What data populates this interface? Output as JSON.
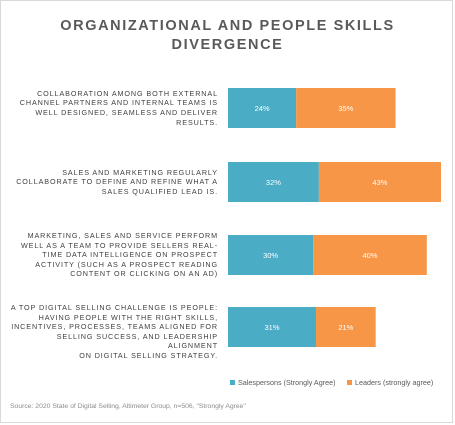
{
  "chart_data": {
    "type": "bar",
    "orientation": "horizontal",
    "stacked": true,
    "title_lines": [
      "ORGANIZATIONAL AND PEOPLE SKILLS",
      "DIVERGENCE"
    ],
    "categories": [
      "Collaboration among both external channel partners and internal teams is well designed, seamless and deliver results.",
      "Sales and marketing regularly collaborate to define and refine what a sales qualified lead is.",
      "Marketing, sales and service perform well as a team to provide sellers real-time data intelligence on prospect activity (such as a prospect reading content or clicking on an ad)",
      "A top digital selling challenge is people: having people with the right skills, incentives, processes, teams aligned for selling success, and leadership alignment on digital selling strategy."
    ],
    "category_lines": [
      [
        "COLLABORATION AMONG BOTH EXTERNAL",
        "CHANNEL PARTNERS AND INTERNAL TEAMS IS",
        "WELL DESIGNED, SEAMLESS AND DELIVER",
        "RESULTS."
      ],
      [
        "SALES AND MARKETING REGULARLY",
        "COLLABORATE TO DEFINE AND REFINE WHAT A",
        "SALES QUALIFIED LEAD IS."
      ],
      [
        "MARKETING, SALES AND SERVICE PERFORM",
        "WELL AS A TEAM TO PROVIDE SELLERS REAL-",
        "TIME DATA INTELLIGENCE ON PROSPECT",
        "ACTIVITY (SUCH AS A PROSPECT READING",
        "CONTENT OR CLICKING ON AN AD)"
      ],
      [
        "A TOP DIGITAL SELLING CHALLENGE IS PEOPLE:",
        "HAVING PEOPLE WITH THE RIGHT SKILLS,",
        "INCENTIVES, PROCESSES, TEAMS ALIGNED FOR",
        "SELLING SUCCESS, AND LEADERSHIP ALIGNMENT",
        "ON DIGITAL SELLING STRATEGY."
      ]
    ],
    "series": [
      {
        "name": "Salespersons (Strongly Agree)",
        "color": "#4bacc6",
        "values": [
          24,
          32,
          30,
          31
        ],
        "labels": [
          "24%",
          "32%",
          "30%",
          "31%"
        ]
      },
      {
        "name": "Leaders (strongly agree)",
        "color": "#f79646",
        "values": [
          35,
          43,
          40,
          21
        ],
        "labels": [
          "35%",
          "43%",
          "40%",
          "21%"
        ]
      }
    ],
    "value_unit": "%",
    "legend_position": "bottom-right",
    "grid": false,
    "source": "Source: 2020 State of Digital Selling, Altimeter Group, n=506, \"Strongly Agree\""
  }
}
